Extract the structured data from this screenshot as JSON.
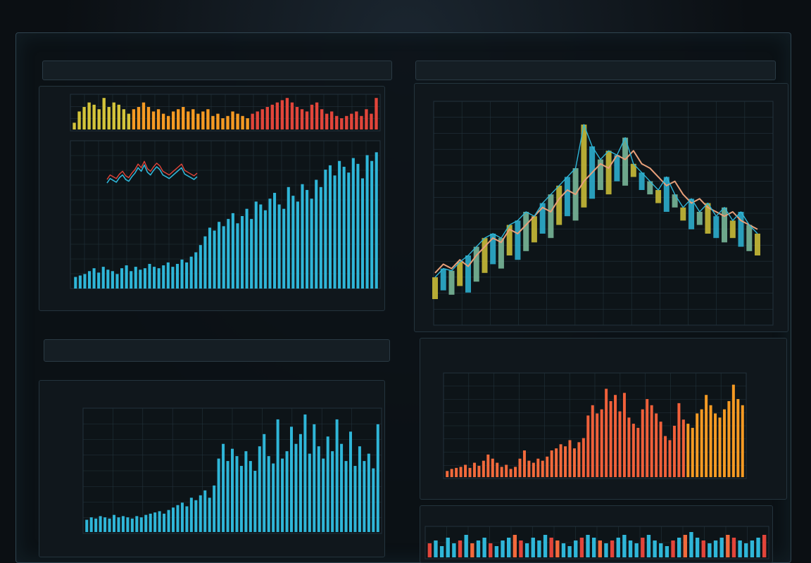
{
  "theme": {
    "background": "#0b0f13",
    "panel": "#10171c",
    "grid": "#22323b",
    "cyan": "#2fb6d8",
    "orange": "#f59a23",
    "red": "#e2453a",
    "coral": "#f26a3c",
    "yellow": "#d4c43a",
    "green": "#3fae5a"
  },
  "chart_data": [
    {
      "type": "bar",
      "panel": "top-left-strip",
      "series": [
        {
          "values": [
            3,
            8,
            10,
            12,
            11,
            9,
            14,
            10,
            12,
            11,
            9,
            7,
            9,
            10,
            12,
            10,
            8,
            9,
            7,
            6,
            8,
            9,
            10,
            8,
            9,
            7,
            8,
            9,
            6,
            7,
            5,
            6,
            8,
            7,
            6,
            5,
            7,
            8,
            9,
            10,
            11,
            12,
            13,
            14,
            12,
            10,
            9,
            8,
            11,
            12,
            9,
            7,
            8,
            6,
            5,
            6,
            7,
            8,
            6,
            9,
            7,
            14
          ]
        }
      ]
    },
    {
      "type": "bar",
      "panel": "top-left-main",
      "series": [
        {
          "values": [
            8,
            9,
            10,
            12,
            14,
            11,
            15,
            13,
            12,
            10,
            14,
            16,
            12,
            15,
            13,
            14,
            17,
            15,
            14,
            16,
            18,
            15,
            17,
            20,
            18,
            22,
            25,
            30,
            36,
            42,
            40,
            46,
            43,
            48,
            52,
            45,
            50,
            55,
            48,
            60,
            58,
            54,
            62,
            66,
            58,
            55,
            70,
            64,
            60,
            72,
            68,
            62,
            75,
            70,
            82,
            85,
            78,
            88,
            84,
            80,
            90,
            86,
            76,
            92,
            88,
            94
          ]
        },
        {
          "values": [
            35,
            40,
            38,
            36,
            41,
            44,
            39,
            37,
            42,
            46,
            52,
            48,
            55,
            47,
            44,
            49,
            53,
            50,
            44,
            42,
            40,
            43,
            46,
            49,
            52,
            45,
            43,
            41,
            39,
            42
          ]
        }
      ]
    },
    {
      "type": "line",
      "panel": "top-right",
      "x": [
        1,
        2,
        3,
        4,
        5,
        6,
        7,
        8,
        9,
        10,
        11,
        12,
        13,
        14,
        15,
        16,
        17,
        18,
        19,
        20,
        21,
        22,
        23,
        24,
        25,
        26,
        27,
        28,
        29,
        30,
        31,
        32,
        33,
        34,
        35,
        36,
        37,
        38,
        39,
        40
      ],
      "series": [
        {
          "values": [
            22,
            26,
            24,
            28,
            25,
            30,
            34,
            38,
            36,
            42,
            40,
            44,
            48,
            52,
            50,
            56,
            60,
            58,
            64,
            68,
            72,
            70,
            76,
            74,
            78,
            72,
            70,
            66,
            62,
            64,
            58,
            54,
            56,
            52,
            50,
            48,
            50,
            46,
            44,
            42
          ]
        },
        {
          "values": [
            20,
            24,
            23,
            27,
            30,
            34,
            38,
            40,
            38,
            44,
            46,
            50,
            48,
            54,
            58,
            62,
            66,
            70,
            90,
            80,
            74,
            78,
            76,
            84,
            72,
            68,
            64,
            60,
            66,
            58,
            52,
            56,
            50,
            54,
            48,
            52,
            46,
            50,
            44,
            40
          ]
        }
      ]
    },
    {
      "type": "bar",
      "panel": "bottom-left",
      "series": [
        {
          "values": [
            10,
            12,
            11,
            13,
            12,
            11,
            14,
            12,
            13,
            12,
            11,
            13,
            12,
            14,
            15,
            16,
            17,
            15,
            18,
            20,
            22,
            24,
            21,
            28,
            26,
            30,
            34,
            28,
            38,
            60,
            72,
            58,
            68,
            62,
            54,
            66,
            58,
            50,
            70,
            80,
            62,
            56,
            92,
            60,
            66,
            86,
            72,
            80,
            96,
            64,
            88,
            70,
            60,
            78,
            66,
            92,
            72,
            58,
            82,
            54,
            70,
            58,
            64,
            52,
            88
          ]
        }
      ]
    },
    {
      "type": "bar",
      "panel": "bottom-right",
      "series": [
        {
          "values": [
            6,
            8,
            9,
            10,
            12,
            9,
            14,
            11,
            16,
            22,
            18,
            14,
            10,
            12,
            8,
            10,
            18,
            26,
            16,
            14,
            18,
            16,
            20,
            26,
            28,
            32,
            30,
            36,
            28,
            34,
            38,
            60,
            70,
            62,
            66,
            86,
            74,
            80,
            64,
            82,
            58,
            52,
            48,
            66,
            76,
            70,
            62,
            54,
            40,
            36,
            50,
            72,
            56,
            52,
            48,
            62,
            66,
            80,
            70,
            62,
            58,
            66,
            74,
            90,
            76,
            70
          ]
        }
      ]
    },
    {
      "type": "bar",
      "panel": "bottom-right-strip",
      "series": [
        {
          "values": [
            5,
            6,
            4,
            7,
            5,
            6,
            8,
            5,
            6,
            7,
            5,
            4,
            6,
            7,
            8,
            6,
            5,
            7,
            6,
            8,
            7,
            6,
            5,
            4,
            6,
            7,
            8,
            7,
            6,
            5,
            6,
            7,
            8,
            6,
            5,
            7,
            8,
            6,
            5,
            4,
            6,
            7,
            8,
            9,
            7,
            6,
            5,
            6,
            7,
            8,
            7,
            6,
            5,
            6,
            7,
            8
          ]
        }
      ]
    }
  ]
}
